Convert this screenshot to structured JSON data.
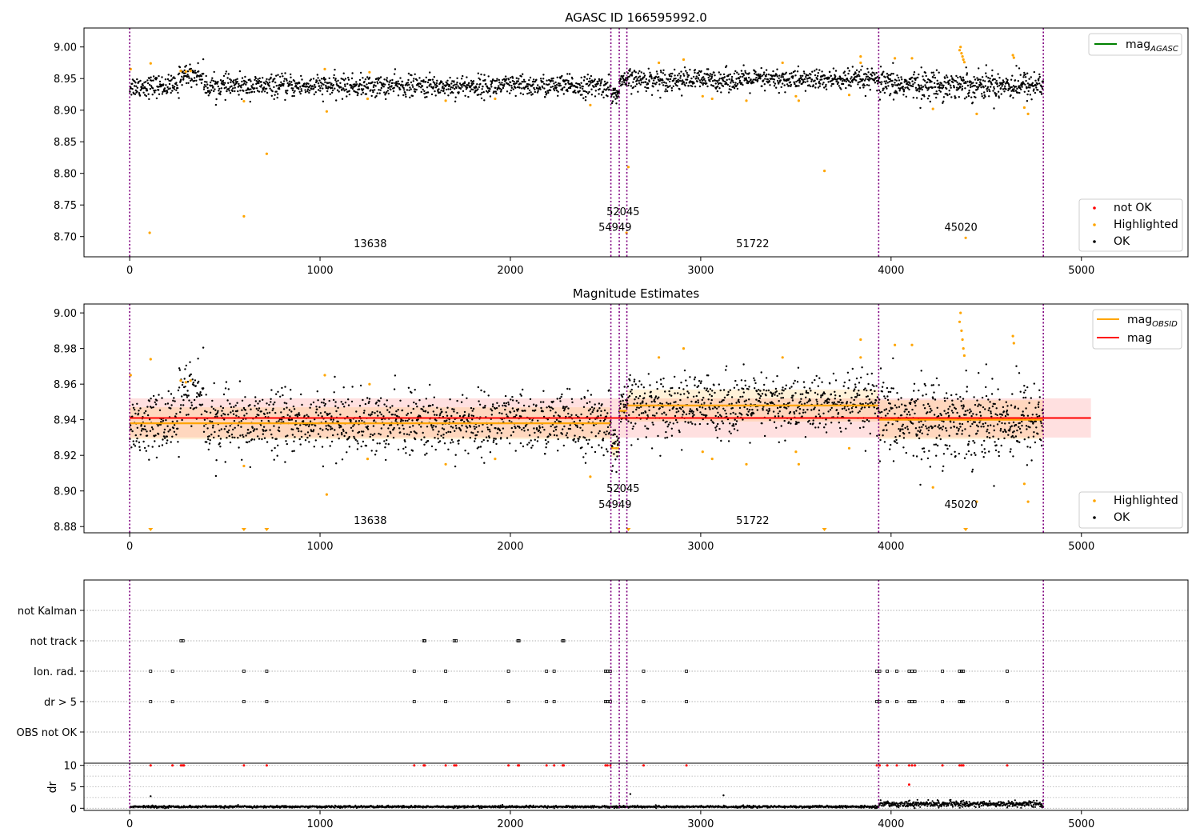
{
  "figure": {
    "title": "AGASC ID 166595992.0"
  },
  "chart_data": [
    {
      "type": "scatter",
      "title": "AGASC ID 166595992.0",
      "xlabel": "",
      "ylabel": "",
      "xlim": [
        -240,
        5560
      ],
      "ylim": [
        8.668,
        9.03
      ],
      "x_ticks": [
        0,
        1000,
        2000,
        3000,
        4000,
        5000
      ],
      "y_ticks": [
        8.7,
        8.75,
        8.8,
        8.85,
        8.9,
        8.95,
        9.0
      ],
      "y_tick_labels": [
        "8.70",
        "8.75",
        "8.80",
        "8.85",
        "8.90",
        "8.95",
        "9.00"
      ],
      "grid": false,
      "legends": [
        {
          "placement": "upper-right",
          "entries": [
            {
              "label": "mag",
              "sub": "AGASC",
              "color": "#008000",
              "marker": "line"
            }
          ]
        },
        {
          "placement": "lower-right",
          "entries": [
            {
              "label": "not OK",
              "color": "#ff0000",
              "marker": "dot"
            },
            {
              "label": "Highlighted",
              "color": "#ffa500",
              "marker": "dot"
            },
            {
              "label": "OK",
              "color": "#000000",
              "marker": "dot"
            }
          ]
        }
      ],
      "obs_boundaries": [
        0,
        2528,
        2572,
        2612,
        3935,
        4800
      ],
      "obs_labels": [
        {
          "text": "13638",
          "x": 1264,
          "y": 8.683
        },
        {
          "text": "54949",
          "x": 2550,
          "y": 8.709
        },
        {
          "text": "52045",
          "x": 2592,
          "y": 8.734
        },
        {
          "text": "51722",
          "x": 3273,
          "y": 8.683
        },
        {
          "text": "45020",
          "x": 4367,
          "y": 8.709
        }
      ],
      "series": [
        {
          "name": "OK",
          "color": "#000000",
          "segments": [
            {
              "x0": 0,
              "x1": 2528,
              "mean": 8.938,
              "sd": 0.0085,
              "n": 1300,
              "trend": 0,
              "bump": {
                "x0": 260,
                "x1": 390,
                "dy": 0.018
              }
            },
            {
              "x0": 2528,
              "x1": 2572,
              "mean": 8.925,
              "sd": 0.006,
              "n": 30,
              "trend": 0
            },
            {
              "x0": 2572,
              "x1": 2612,
              "mean": 8.945,
              "sd": 0.006,
              "n": 25,
              "trend": 0
            },
            {
              "x0": 2612,
              "x1": 3935,
              "mean": 8.948,
              "sd": 0.0085,
              "n": 700,
              "trend": 0
            },
            {
              "x0": 3935,
              "x1": 4800,
              "mean": 8.94,
              "sd": 0.011,
              "n": 500,
              "trend": 0
            }
          ]
        },
        {
          "name": "Highlighted",
          "color": "#ffa500",
          "points": [
            [
              5,
              8.965
            ],
            [
              110,
              8.974
            ],
            [
              105,
              8.706
            ],
            [
              268,
              8.962
            ],
            [
              295,
              8.961
            ],
            [
              320,
              8.962
            ],
            [
              600,
              8.914
            ],
            [
              600,
              8.732
            ],
            [
              720,
              8.831
            ],
            [
              1025,
              8.965
            ],
            [
              1035,
              8.898
            ],
            [
              1250,
              8.918
            ],
            [
              1260,
              8.96
            ],
            [
              1660,
              8.915
            ],
            [
              1920,
              8.918
            ],
            [
              2420,
              8.908
            ],
            [
              2620,
              8.81
            ],
            [
              2610,
              8.706
            ],
            [
              2780,
              8.975
            ],
            [
              2910,
              8.98
            ],
            [
              3010,
              8.922
            ],
            [
              3060,
              8.918
            ],
            [
              3240,
              8.915
            ],
            [
              3430,
              8.975
            ],
            [
              3500,
              8.922
            ],
            [
              3515,
              8.915
            ],
            [
              3650,
              8.804
            ],
            [
              3780,
              8.924
            ],
            [
              3840,
              8.985
            ],
            [
              3840,
              8.975
            ],
            [
              4020,
              8.982
            ],
            [
              4110,
              8.982
            ],
            [
              4220,
              8.902
            ],
            [
              4360,
              8.995
            ],
            [
              4365,
              9.0
            ],
            [
              4370,
              8.99
            ],
            [
              4375,
              8.985
            ],
            [
              4380,
              8.98
            ],
            [
              4385,
              8.976
            ],
            [
              4392,
              8.698
            ],
            [
              4450,
              8.894
            ],
            [
              4640,
              8.987
            ],
            [
              4645,
              8.983
            ],
            [
              4700,
              8.904
            ],
            [
              4720,
              8.894
            ]
          ]
        },
        {
          "name": "not OK",
          "color": "#ff0000",
          "points": []
        }
      ]
    },
    {
      "type": "scatter",
      "title": "Magnitude Estimates",
      "xlabel": "",
      "ylabel": "",
      "xlim": [
        -240,
        5560
      ],
      "ylim": [
        8.8765,
        9.005
      ],
      "x_ticks": [
        0,
        1000,
        2000,
        3000,
        4000,
        5000
      ],
      "y_ticks": [
        8.88,
        8.9,
        8.92,
        8.94,
        8.96,
        8.98,
        9.0
      ],
      "y_tick_labels": [
        "8.88",
        "8.90",
        "8.92",
        "8.94",
        "8.96",
        "8.98",
        "9.00"
      ],
      "grid": false,
      "legends": [
        {
          "placement": "upper-right",
          "entries": [
            {
              "label": "mag",
              "sub": "OBSID",
              "color": "#ffa500",
              "marker": "line"
            },
            {
              "label": "mag",
              "sub": "",
              "color": "#ff0000",
              "marker": "line"
            }
          ]
        },
        {
          "placement": "lower-right",
          "entries": [
            {
              "label": "Highlighted",
              "color": "#ffa500",
              "marker": "dot"
            },
            {
              "label": "OK",
              "color": "#000000",
              "marker": "dot"
            }
          ]
        }
      ],
      "obs_boundaries": [
        0,
        2528,
        2572,
        2612,
        3935,
        4800
      ],
      "obs_labels": [
        {
          "text": "13638",
          "x": 1264,
          "y": 8.8815
        },
        {
          "text": "54949",
          "x": 2550,
          "y": 8.8905
        },
        {
          "text": "52045",
          "x": 2592,
          "y": 8.8995
        },
        {
          "text": "51722",
          "x": 3273,
          "y": 8.8815
        },
        {
          "text": "45020",
          "x": 4367,
          "y": 8.8905
        }
      ],
      "mag": {
        "value": 8.941,
        "band": [
          8.93,
          8.952
        ],
        "x0": 0,
        "x1": 5050,
        "color": "#ff0000"
      },
      "mag_obsid": [
        {
          "x0": 0,
          "x1": 2528,
          "value": 8.938,
          "band": [
            8.929,
            8.947
          ]
        },
        {
          "x0": 2528,
          "x1": 2572,
          "value": 8.924,
          "band": [
            8.919,
            8.929
          ]
        },
        {
          "x0": 2572,
          "x1": 2612,
          "value": 8.945,
          "band": [
            8.94,
            8.95
          ]
        },
        {
          "x0": 2612,
          "x1": 3935,
          "value": 8.948,
          "band": [
            8.939,
            8.957
          ]
        },
        {
          "x0": 3935,
          "x1": 4800,
          "value": 8.94,
          "band": [
            8.929,
            8.951
          ]
        }
      ],
      "below_range_markers": [
        110,
        600,
        720,
        2620,
        3650,
        4392
      ],
      "series": [
        {
          "name": "OK",
          "color": "#000000",
          "same_as_panel": 0
        },
        {
          "name": "Highlighted",
          "color": "#ffa500",
          "same_as_panel": 0
        }
      ]
    },
    {
      "type": "scatter",
      "title": "",
      "xlabel": "",
      "ylabel": "",
      "xlim": [
        -240,
        5560
      ],
      "y_categories": [
        "not Kalman",
        "not track",
        "Ion. rad.",
        "dr > 5",
        "OBS not OK"
      ],
      "grid": true,
      "obs_boundaries": [
        0,
        2528,
        2572,
        2612,
        3935,
        4800
      ],
      "flags": {
        "not track": [
          270,
          280,
          1545,
          1550,
          1705,
          1715,
          2040,
          2045,
          2275,
          2280
        ],
        "Ion. rad.": [
          110,
          225,
          600,
          720,
          1495,
          1660,
          1990,
          2190,
          2230,
          2500,
          2510,
          2525,
          2700,
          2925,
          3925,
          3940,
          3980,
          4030,
          4095,
          4110,
          4125,
          4270,
          4360,
          4370,
          4380,
          4610
        ],
        "dr > 5": [
          110,
          225,
          600,
          720,
          1495,
          1660,
          1990,
          2190,
          2230,
          2500,
          2510,
          2525,
          2700,
          2925,
          3925,
          3940,
          3980,
          4030,
          4095,
          4110,
          4125,
          4270,
          4360,
          4370,
          4380,
          4610
        ]
      }
    },
    {
      "type": "scatter",
      "title": "",
      "xlabel": "",
      "ylabel": "dr",
      "xlim": [
        -240,
        5560
      ],
      "ylim": [
        -0.5,
        10.5
      ],
      "x_ticks": [
        0,
        1000,
        2000,
        3000,
        4000,
        5000
      ],
      "y_ticks": [
        0,
        5,
        10
      ],
      "grid": true,
      "obs_boundaries": [
        0,
        2528,
        2572,
        2612,
        3935,
        4800
      ],
      "series": [
        {
          "name": "OK",
          "color": "#000000",
          "segments": [
            {
              "x0": 0,
              "x1": 3935,
              "mean": 0.35,
              "sd": 0.12,
              "n": 1800
            },
            {
              "x0": 3935,
              "x1": 4800,
              "mean": 1.0,
              "sd": 0.35,
              "n": 450
            }
          ],
          "points": [
            [
              110,
              2.8
            ],
            [
              2630,
              3.3
            ],
            [
              3120,
              3.0
            ]
          ]
        },
        {
          "name": "not OK",
          "color": "#ff0000",
          "points": [
            [
              110,
              10
            ],
            [
              225,
              10
            ],
            [
              270,
              10
            ],
            [
              280,
              10
            ],
            [
              285,
              10
            ],
            [
              600,
              10
            ],
            [
              720,
              10
            ],
            [
              1495,
              10
            ],
            [
              1545,
              10
            ],
            [
              1550,
              10
            ],
            [
              1660,
              10
            ],
            [
              1705,
              10
            ],
            [
              1715,
              10
            ],
            [
              1990,
              10
            ],
            [
              2040,
              10
            ],
            [
              2045,
              10
            ],
            [
              2190,
              10
            ],
            [
              2230,
              10
            ],
            [
              2275,
              10
            ],
            [
              2280,
              10
            ],
            [
              2500,
              10
            ],
            [
              2510,
              10
            ],
            [
              2525,
              10
            ],
            [
              2700,
              10
            ],
            [
              2925,
              10
            ],
            [
              3925,
              10
            ],
            [
              3940,
              10
            ],
            [
              3980,
              10
            ],
            [
              4030,
              10
            ],
            [
              4095,
              10
            ],
            [
              4110,
              10
            ],
            [
              4125,
              10
            ],
            [
              4270,
              10
            ],
            [
              4360,
              10
            ],
            [
              4370,
              10
            ],
            [
              4380,
              10
            ],
            [
              4610,
              10
            ],
            [
              4095,
              5.5
            ]
          ]
        }
      ]
    }
  ]
}
